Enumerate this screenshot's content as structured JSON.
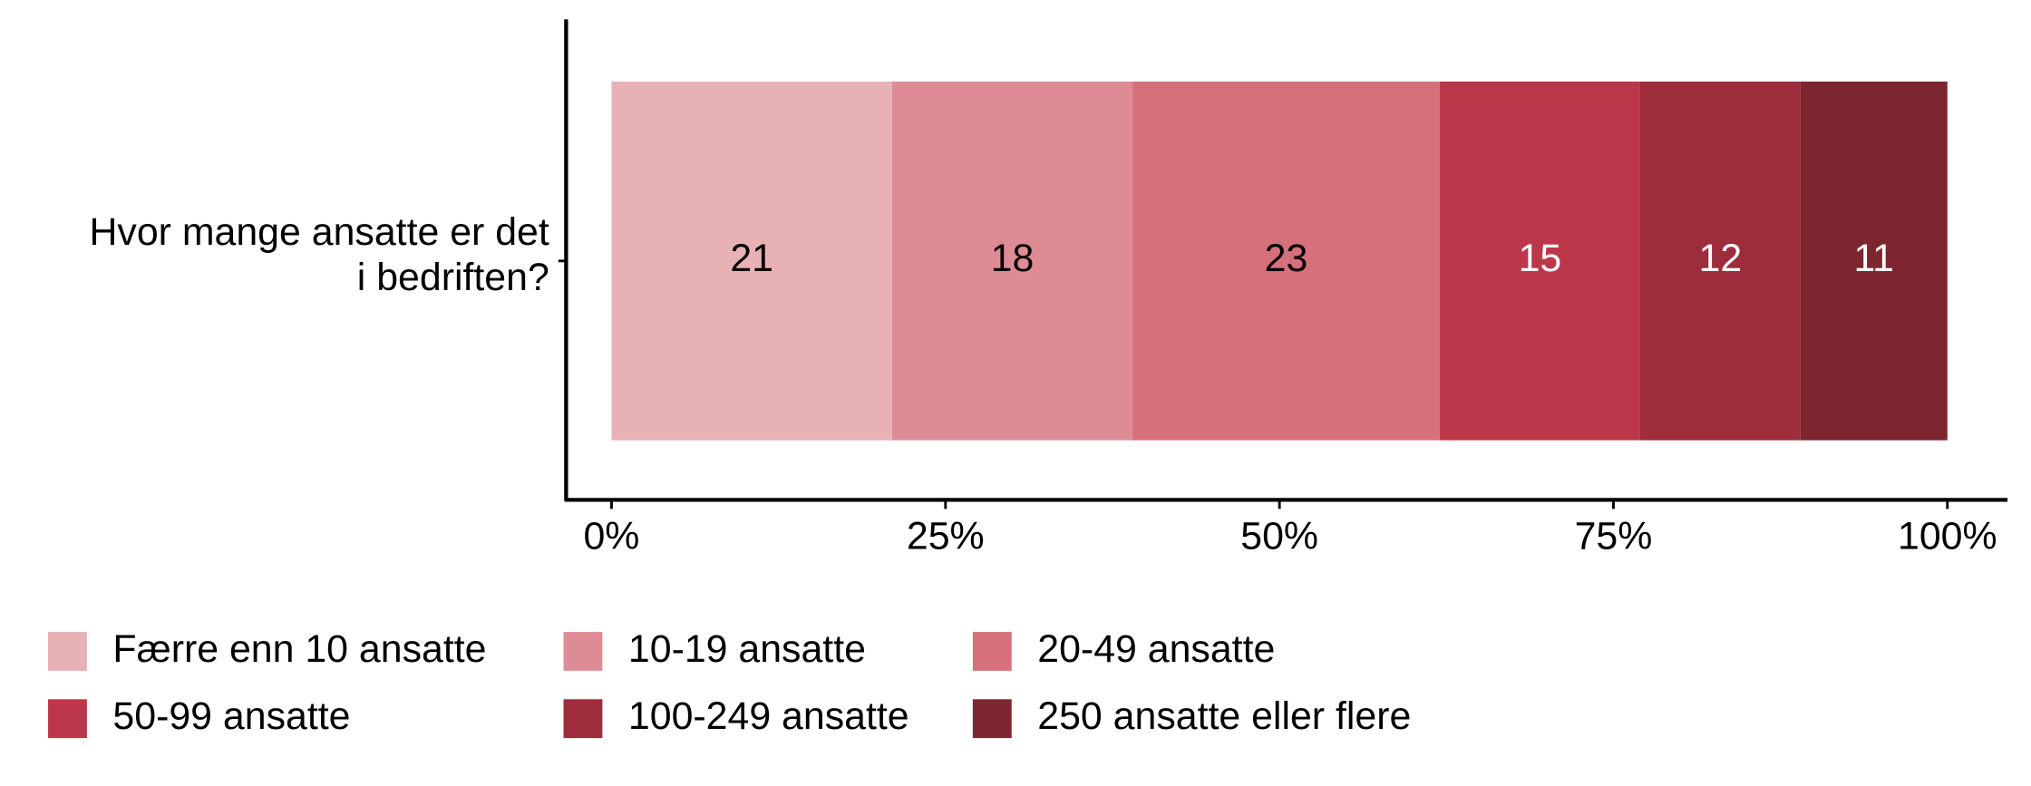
{
  "chart_data": {
    "type": "stacked-bar-horizontal",
    "categories": [
      "Hvor mange ansatte er det\ni bedriften?"
    ],
    "series": [
      {
        "name": "Færre enn 10 ansatte",
        "color": "#e8b1b6",
        "values": [
          21
        ]
      },
      {
        "name": "10-19 ansatte",
        "color": "#dd8c95",
        "values": [
          18
        ]
      },
      {
        "name": "20-49 ansatte",
        "color": "#d6707b",
        "values": [
          23
        ]
      },
      {
        "name": "50-99 ansatte",
        "color": "#bc3749",
        "values": [
          15
        ]
      },
      {
        "name": "100-249 ansatte",
        "color": "#9d2d3c",
        "values": [
          12
        ]
      },
      {
        "name": "250 ansatte eller flere",
        "color": "#7d2630",
        "values": [
          11
        ]
      }
    ],
    "xlim": [
      -3.4,
      104.5
    ],
    "xticks": [
      {
        "value": 0,
        "label": "0%"
      },
      {
        "value": 25,
        "label": "25%"
      },
      {
        "value": 50,
        "label": "50%"
      },
      {
        "value": 75,
        "label": "75%"
      },
      {
        "value": 100,
        "label": "100%"
      }
    ],
    "legend": "bottom"
  }
}
